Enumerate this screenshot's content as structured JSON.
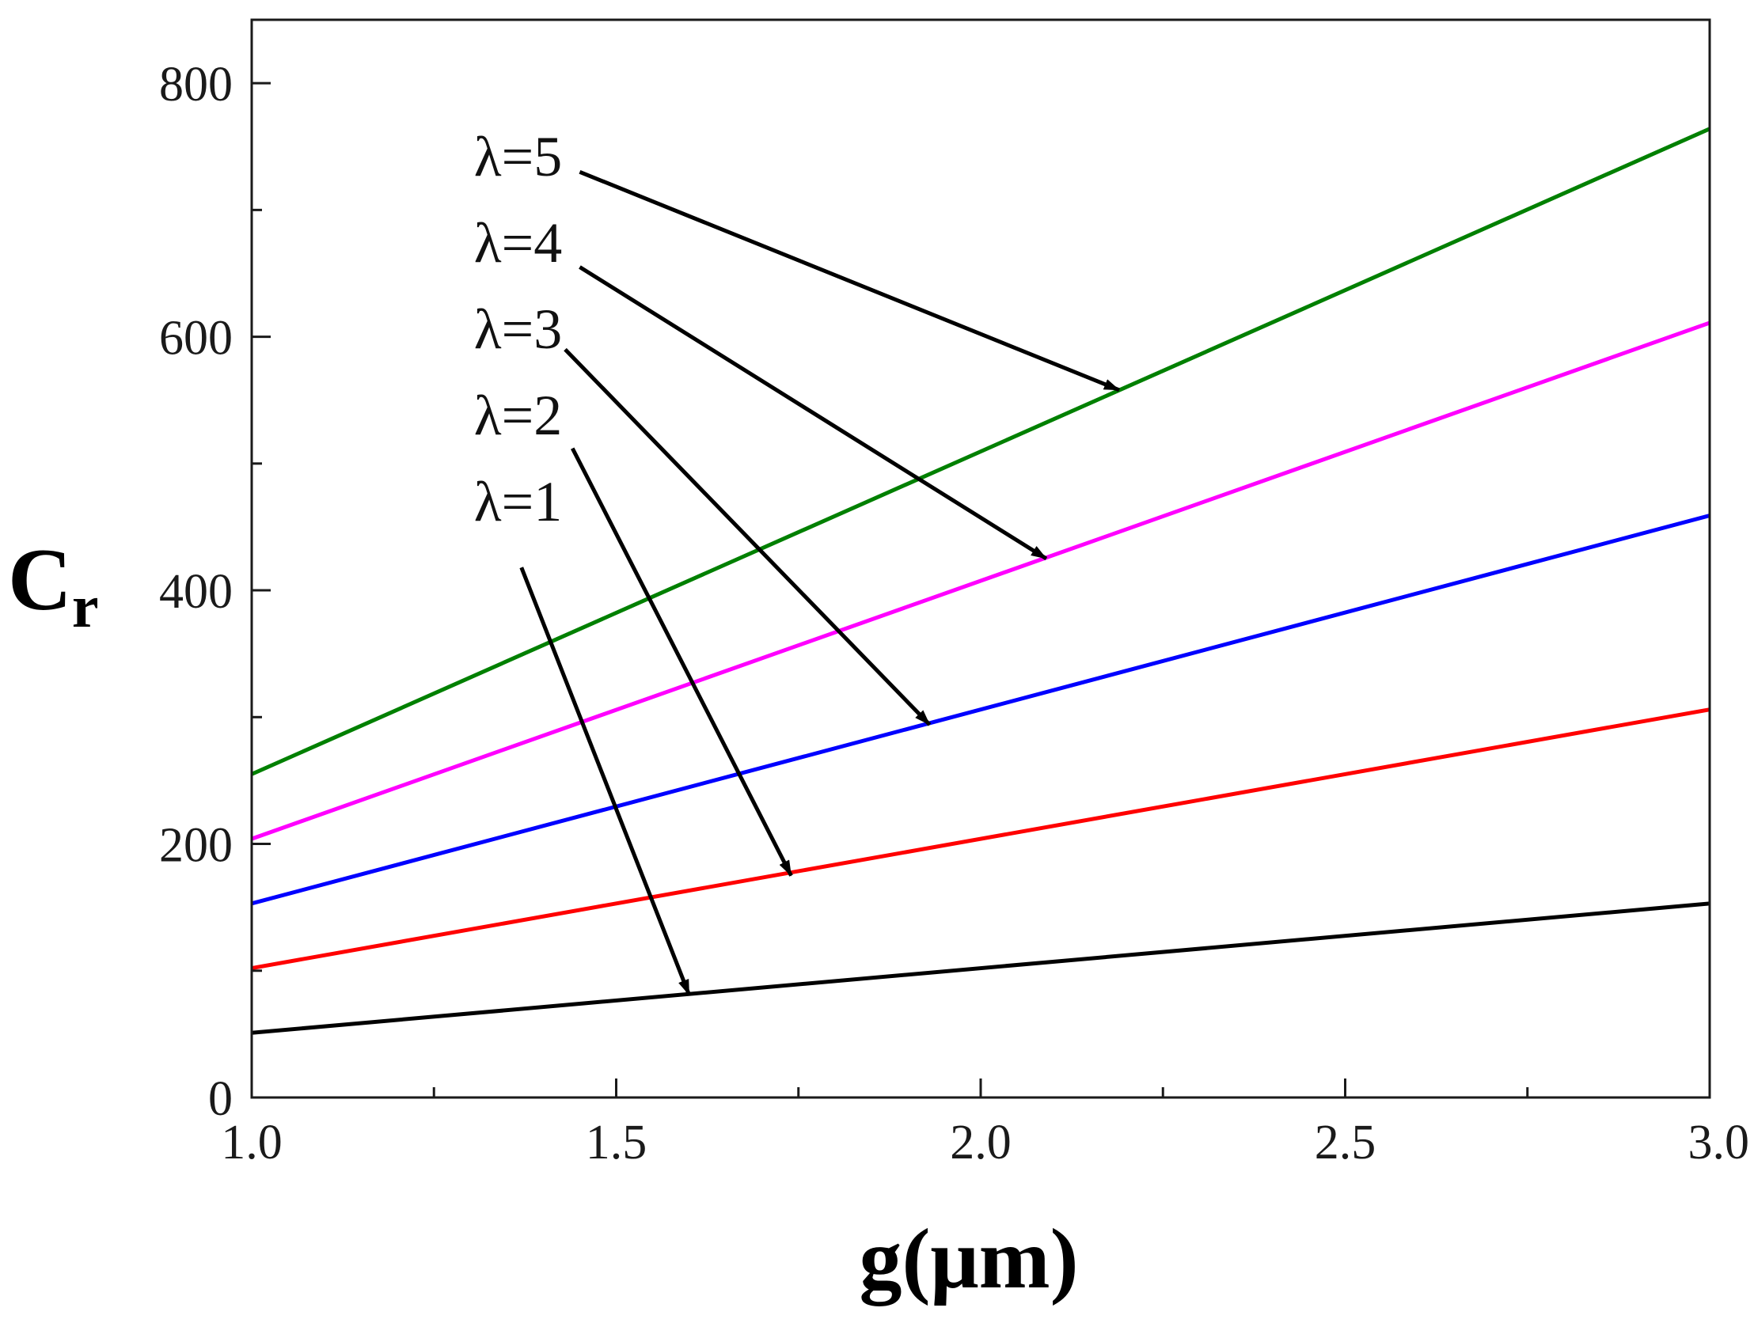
{
  "chart_data": {
    "type": "line",
    "xlabel": "g(μm)",
    "ylabel": "C",
    "ylabel_subscript": "r",
    "xlim": [
      1.0,
      3.0
    ],
    "ylim": [
      0,
      850
    ],
    "x_ticks": [
      1.0,
      1.5,
      2.0,
      2.5,
      3.0
    ],
    "x_tick_labels": [
      "1.0",
      "1.5",
      "2.0",
      "2.5",
      "3.0"
    ],
    "x_minor_ticks": [
      1.25,
      1.75,
      2.25,
      2.75
    ],
    "y_ticks": [
      0,
      200,
      400,
      600,
      800
    ],
    "y_tick_labels": [
      "0",
      "200",
      "400",
      "600",
      "800"
    ],
    "y_minor_ticks": [
      100,
      300,
      500,
      700
    ],
    "grid": false,
    "legend": "none",
    "series": [
      {
        "name": "λ=1",
        "color": "#000000",
        "x": [
          1.0,
          3.0
        ],
        "y": [
          51,
          153
        ]
      },
      {
        "name": "λ=2",
        "color": "#ff0000",
        "x": [
          1.0,
          3.0
        ],
        "y": [
          102,
          306
        ]
      },
      {
        "name": "λ=3",
        "color": "#0000ff",
        "x": [
          1.0,
          3.0
        ],
        "y": [
          153,
          459
        ]
      },
      {
        "name": "λ=4",
        "color": "#ff00ff",
        "x": [
          1.0,
          3.0
        ],
        "y": [
          204,
          611
        ]
      },
      {
        "name": "λ=5",
        "color": "#008000",
        "x": [
          1.0,
          3.0
        ],
        "y": [
          255,
          764
        ]
      }
    ],
    "annotations": [
      {
        "text": "λ=1",
        "series": "λ=1",
        "text_at": [
          1.37,
          455
        ],
        "arrow_from": [
          1.37,
          418
        ],
        "arrow_to": [
          1.6,
          81
        ]
      },
      {
        "text": "λ=2",
        "series": "λ=2",
        "text_at": [
          1.37,
          523
        ],
        "arrow_from": [
          1.44,
          512
        ],
        "arrow_to": [
          1.74,
          175
        ]
      },
      {
        "text": "λ=3",
        "series": "λ=3",
        "text_at": [
          1.37,
          591
        ],
        "arrow_from": [
          1.43,
          590
        ],
        "arrow_to": [
          1.93,
          294
        ]
      },
      {
        "text": "λ=4",
        "series": "λ=4",
        "text_at": [
          1.37,
          659
        ],
        "arrow_from": [
          1.45,
          655
        ],
        "arrow_to": [
          2.09,
          425
        ]
      },
      {
        "text": "λ=5",
        "series": "λ=5",
        "text_at": [
          1.37,
          727
        ],
        "arrow_from": [
          1.45,
          730
        ],
        "arrow_to": [
          2.19,
          558
        ]
      }
    ]
  }
}
